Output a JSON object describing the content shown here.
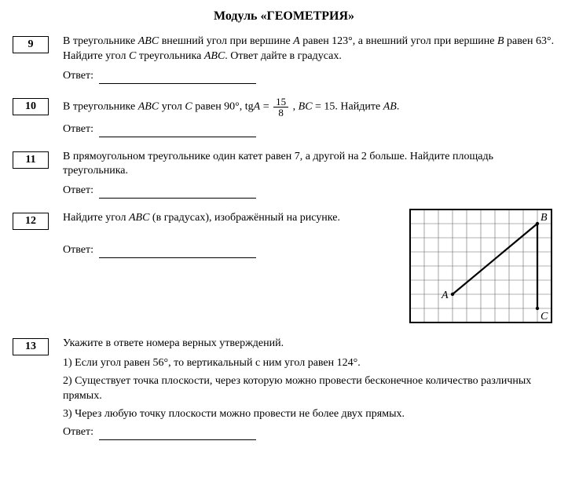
{
  "title": "Модуль «ГЕОМЕТРИЯ»",
  "answer_label": "Ответ:",
  "tasks": {
    "t9": {
      "num": "9",
      "text": "В треугольнике ABC внешний угол при вершине A равен 123°, а внешний угол при вершине B равен 63°. Найдите угол C треугольника ABC. Ответ дайте в градусах."
    },
    "t10": {
      "num": "10",
      "text_before": "В треугольнике ABC угол C равен 90°,  tgA = ",
      "frac_num": "15",
      "frac_den": "8",
      "text_after": ",  BC = 15. Найдите AB."
    },
    "t11": {
      "num": "11",
      "text": "В прямоугольном треугольнике один катет равен 7, а другой на 2 больше. Найдите площадь треугольника."
    },
    "t12": {
      "num": "12",
      "text": "Найдите угол ABC (в градусах), изображённый на рисунке."
    },
    "t13": {
      "num": "13",
      "text": "Укажите в ответе номера верных утверждений.",
      "s1": "1) Если угол равен 56°, то вертикальный с ним угол равен 124°.",
      "s2": "2) Существует точка плоскости, через которую можно провести бесконечное количество различных прямых.",
      "s3": "3) Через любую точку плоскости можно провести не более двух прямых."
    }
  },
  "figure": {
    "grid": {
      "cols": 10,
      "rows": 8,
      "cell": 18,
      "stroke": "#000000",
      "gridstroke": "#666666",
      "border_width": 2
    },
    "points": {
      "A": {
        "col": 3,
        "row": 6,
        "label": "A"
      },
      "B": {
        "col": 9,
        "row": 1,
        "label": "B"
      },
      "C": {
        "col": 9,
        "row": 7,
        "label": "C"
      }
    },
    "segments": [
      {
        "from": "A",
        "to": "B"
      },
      {
        "from": "B",
        "to": "C"
      }
    ],
    "line_width": 2.2,
    "font_size": 14
  }
}
